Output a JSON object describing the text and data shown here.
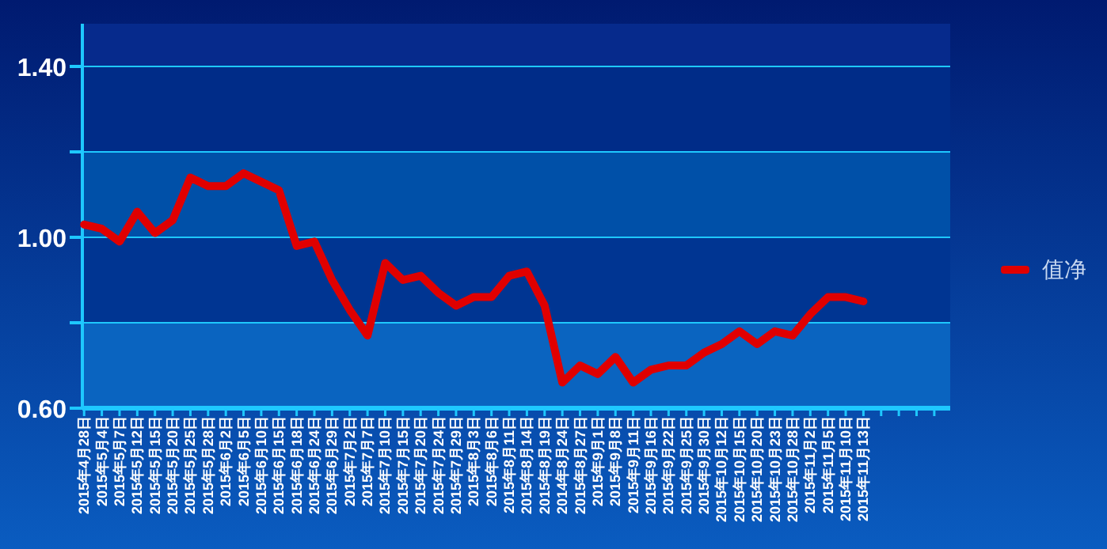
{
  "chart_data": {
    "type": "line",
    "categories": [
      "2015年4月28日",
      "2015年5月4日",
      "2015年5月7日",
      "2015年5月12日",
      "2015年5月15日",
      "2015年5月20日",
      "2015年5月25日",
      "2015年5月28日",
      "2015年6月2日",
      "2015年6月5日",
      "2015年6月10日",
      "2015年6月15日",
      "2015年6月18日",
      "2015年6月24日",
      "2015年6月29日",
      "2015年7月2日",
      "2015年7月7日",
      "2015年7月10日",
      "2015年7月15日",
      "2015年7月20日",
      "2015年7月24日",
      "2015年7月29日",
      "2015年8月3日",
      "2015年8月6日",
      "2015年8月11日",
      "2015年8月14日",
      "2015年8月19日",
      "2014年8月24日",
      "2015年8月27日",
      "2015年9月1日",
      "2015年9月8日",
      "2015年9月11日",
      "2015年9月16日",
      "2015年9月22日",
      "2015年9月25日",
      "2015年9月30日",
      "2015年10月12日",
      "2015年10月15日",
      "2015年10月20日",
      "2015年10月23日",
      "2015年10月28日",
      "2015年11月2日",
      "2015年11月5日",
      "2015年11月10日",
      "2015年11月13日",
      null,
      null,
      null,
      null
    ],
    "series": [
      {
        "name": "值净",
        "color": "#e00000",
        "values": [
          1.03,
          1.02,
          0.99,
          1.06,
          1.01,
          1.04,
          1.14,
          1.12,
          1.12,
          1.15,
          1.13,
          1.11,
          0.98,
          0.99,
          0.9,
          0.83,
          0.77,
          0.94,
          0.9,
          0.91,
          0.87,
          0.84,
          0.86,
          0.86,
          0.91,
          0.92,
          0.84,
          0.66,
          0.7,
          0.68,
          0.72,
          0.66,
          0.69,
          0.7,
          0.7,
          0.73,
          0.75,
          0.78,
          0.75,
          0.78,
          0.77,
          0.82,
          0.86,
          0.86,
          0.85,
          null,
          null,
          null,
          null
        ]
      }
    ],
    "ylim": [
      0.6,
      1.5
    ],
    "yticks": [
      {
        "value": 0.6,
        "label": "0.60"
      },
      {
        "value": 0.8,
        "label": null
      },
      {
        "value": 1.0,
        "label": "1.00"
      },
      {
        "value": 1.2,
        "label": null
      },
      {
        "value": 1.4,
        "label": "1.40"
      }
    ],
    "bands": [
      {
        "axis": "y",
        "from": 0.6,
        "to": 0.8,
        "color": "#0a64c0"
      },
      {
        "axis": "y",
        "from": 0.8,
        "to": 1.0,
        "color": "#003592"
      },
      {
        "axis": "y",
        "from": 1.0,
        "to": 1.2,
        "color": "#0050a8"
      },
      {
        "axis": "y",
        "from": 1.2,
        "to": 1.4,
        "color": "#002c88"
      },
      {
        "axis": "y",
        "from": 1.4,
        "to": 1.5,
        "color": "#062a8c"
      }
    ],
    "grid": "y",
    "legend": "right",
    "marker": "none",
    "line_style": "solid"
  }
}
